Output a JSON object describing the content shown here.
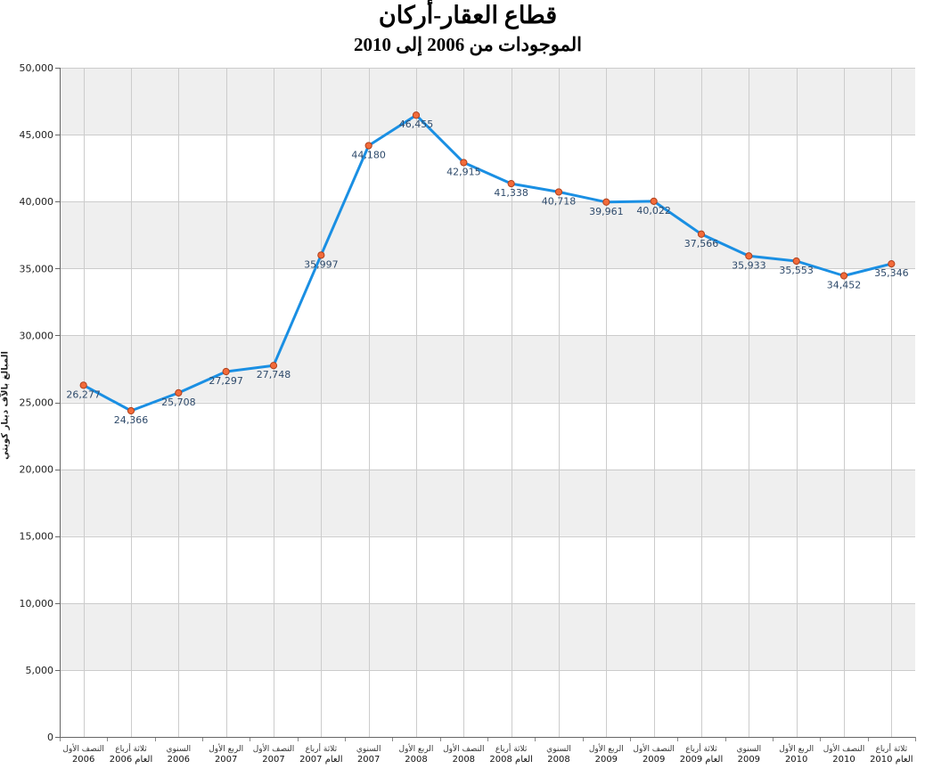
{
  "chart_data": {
    "type": "line",
    "title": "قطاع العقار-أركان",
    "subtitle": "الموجودات من 2006 إلى 2010",
    "ylabel": "المبالغ بالآف دينار كويتي",
    "xlabel": "",
    "ylim": [
      0,
      50000
    ],
    "yticks": [
      "0",
      "5,000",
      "10,000",
      "15,000",
      "20,000",
      "25,000",
      "30,000",
      "35,000",
      "40,000",
      "45,000",
      "50,000"
    ],
    "categories": [
      [
        "النصف الأول",
        "2006"
      ],
      [
        "ثلاثة أرباع",
        "العام 2006"
      ],
      [
        "السنوي",
        "2006"
      ],
      [
        "الربع الأول",
        "2007"
      ],
      [
        "النصف الأول",
        "2007"
      ],
      [
        "ثلاثة أرباع",
        "العام 2007"
      ],
      [
        "السنوي",
        "2007"
      ],
      [
        "الربع الأول",
        "2008"
      ],
      [
        "النصف الأول",
        "2008"
      ],
      [
        "ثلاثة أرباع",
        "العام 2008"
      ],
      [
        "السنوي",
        "2008"
      ],
      [
        "الربع الأول",
        "2009"
      ],
      [
        "النصف الأول",
        "2009"
      ],
      [
        "ثلاثة أرباع",
        "العام 2009"
      ],
      [
        "السنوي",
        "2009"
      ],
      [
        "الربع الأول",
        "2010"
      ],
      [
        "النصف الأول",
        "2010"
      ],
      [
        "ثلاثة أرباع",
        "العام 2010"
      ]
    ],
    "values": [
      26277,
      24366,
      25708,
      27297,
      27748,
      35997,
      44180,
      46455,
      42915,
      41338,
      40718,
      39961,
      40022,
      37566,
      35933,
      35553,
      34452,
      35346
    ],
    "value_labels": [
      "26,277",
      "24,366",
      "25,708",
      "27,297",
      "27,748",
      "35,997",
      "44,180",
      "46,455",
      "42,915",
      "41,338",
      "40,718",
      "39,961",
      "40,022",
      "37,566",
      "35,933",
      "35,553",
      "34,452",
      "35,346"
    ],
    "grid": true,
    "legend": "none",
    "colors": {
      "line": "#1a8fe3",
      "marker_fill": "#f26b3a",
      "marker_stroke": "#b0401c",
      "value_label": "#2e4a6b",
      "band": "#efefef",
      "grid": "#cccccc"
    }
  }
}
